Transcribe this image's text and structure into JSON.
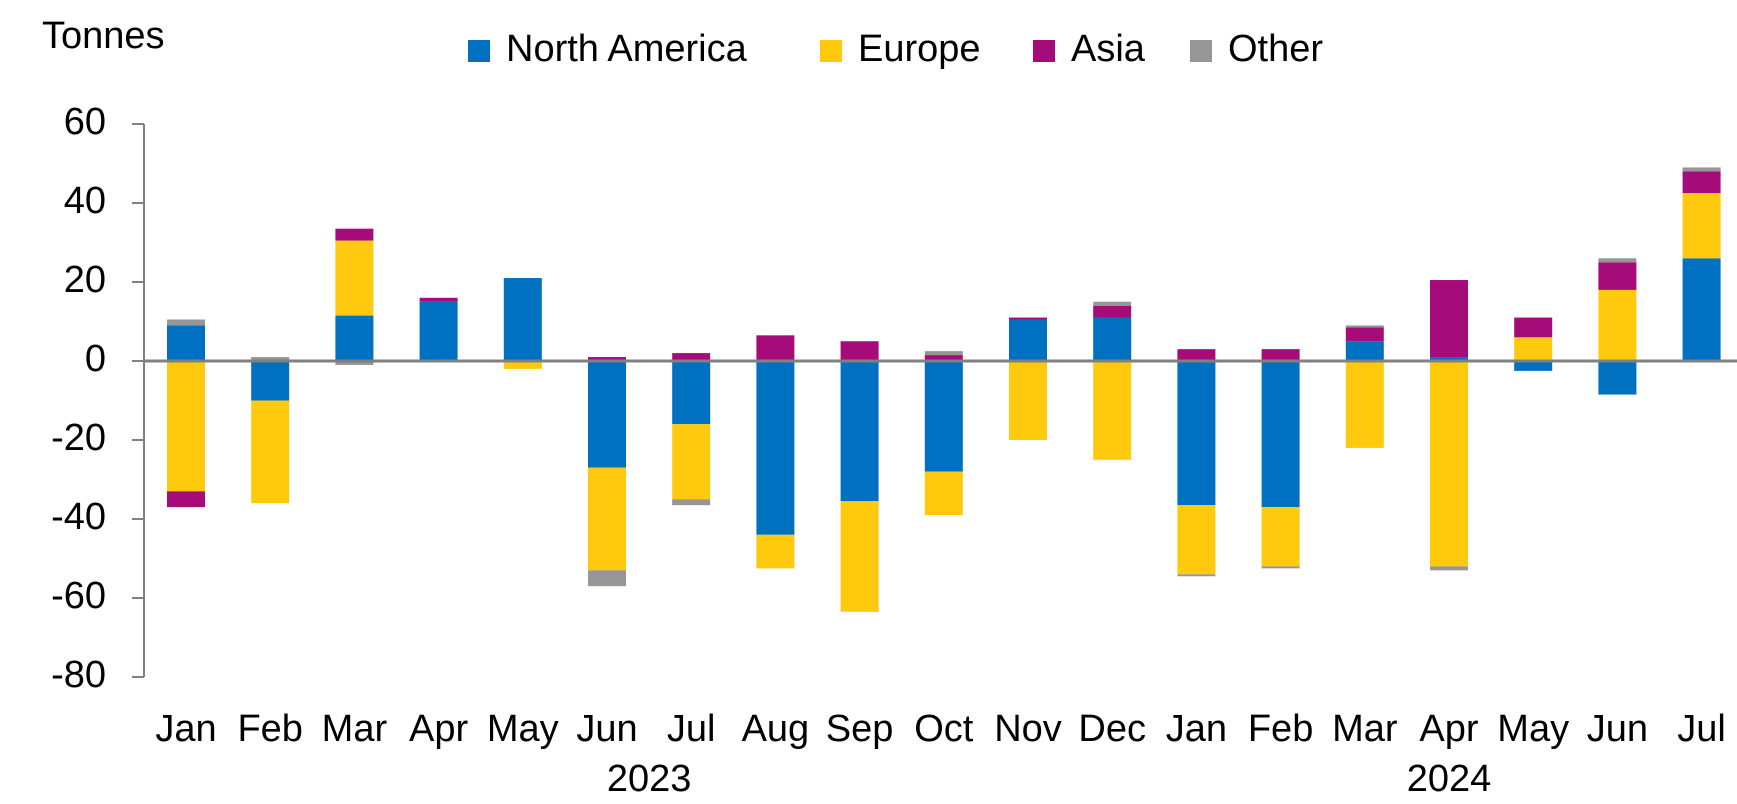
{
  "chart_data": {
    "type": "stacked-bar",
    "y_label": "Tonnes",
    "categories": [
      "Jan",
      "Feb",
      "Mar",
      "Apr",
      "May",
      "Jun",
      "Jul",
      "Aug",
      "Sep",
      "Oct",
      "Nov",
      "Dec",
      "Jan",
      "Feb",
      "Mar",
      "Apr",
      "May",
      "Jun",
      "Jul"
    ],
    "year_labels": [
      {
        "label": "2023",
        "start": 0,
        "end": 11
      },
      {
        "label": "2024",
        "start": 12,
        "end": 18
      }
    ],
    "series": [
      {
        "name": "North America",
        "color": "#0070c0",
        "values": [
          9,
          -10,
          11.5,
          15,
          21,
          -27,
          -16,
          -44,
          -35.5,
          -28,
          10.5,
          11,
          -36.5,
          -37,
          5,
          1,
          -2.5,
          -8.5,
          26
        ]
      },
      {
        "name": "Europe",
        "color": "#ffc90e",
        "values": [
          -33,
          -26,
          19,
          0,
          -2,
          -26,
          -19,
          -8.5,
          -28,
          -11,
          -20,
          -25,
          -17.5,
          -15,
          -22,
          -52,
          6,
          18,
          16.5
        ]
      },
      {
        "name": "Asia",
        "color": "#a50c79",
        "values": [
          -4,
          0,
          3,
          1,
          0,
          1,
          2,
          6.5,
          5,
          1.5,
          0.5,
          3,
          3,
          3,
          3.5,
          19.5,
          5,
          7,
          5.5
        ]
      },
      {
        "name": "Other",
        "color": "#969696",
        "values": [
          1.5,
          1,
          -1,
          0,
          0,
          -4,
          -1.5,
          0,
          0,
          1,
          0,
          1,
          -0.5,
          -0.5,
          0.5,
          -1,
          0,
          1,
          1
        ]
      }
    ],
    "ylim": [
      -80,
      60
    ],
    "yticks": [
      -80,
      -60,
      -40,
      -20,
      0,
      20,
      40,
      60
    ],
    "legend": "top"
  }
}
